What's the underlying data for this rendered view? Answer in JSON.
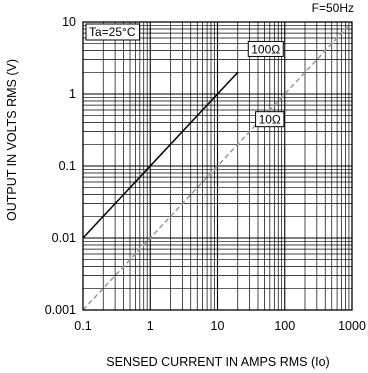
{
  "chart_data": {
    "type": "line",
    "title": "",
    "corner_label": "F=50Hz",
    "condition_label": "Ta=25°C",
    "xlabel": "SENSED CURRENT IN AMPS RMS (Io)",
    "ylabel": "OUTPUT IN VOLTS RMS (V)",
    "x_scale": "log",
    "y_scale": "log",
    "xlim": [
      0.1,
      1000
    ],
    "ylim": [
      0.001,
      10
    ],
    "x_ticks": [
      "0.1",
      "1",
      "10",
      "100",
      "1000"
    ],
    "y_ticks": [
      "0.001",
      "0.01",
      "0.1",
      "1",
      "10"
    ],
    "grid": true,
    "series": [
      {
        "name": "100Ω",
        "x": [
          0.1,
          20
        ],
        "y": [
          0.01,
          2.0
        ],
        "color": "#000000",
        "style": "solid"
      },
      {
        "name": "10Ω",
        "x": [
          0.1,
          1000
        ],
        "y": [
          0.001,
          10
        ],
        "color": "#999999",
        "style": "dashed"
      }
    ]
  }
}
